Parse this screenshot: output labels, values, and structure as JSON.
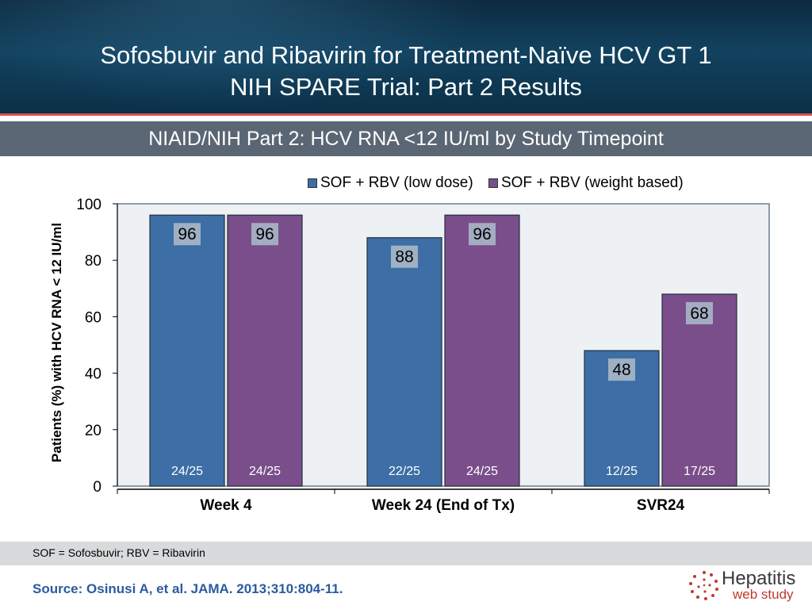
{
  "header": {
    "title_line1": "Sofosbuvir and Ribavirin for Treatment-Naïve HCV GT 1",
    "title_line2": "NIH SPARE Trial: Part 2 Results"
  },
  "subtitle": "NIAID/NIH Part 2: HCV RNA <12 IU/ml by Study Timepoint",
  "colors": {
    "series1": "#3d6ea5",
    "series2": "#7a4e8a",
    "accent_red": "#d9534f",
    "source": "#2c5aa0"
  },
  "chart_data": {
    "type": "bar",
    "categories": [
      "Week 4",
      "Week 24 (End of Tx)",
      "SVR24"
    ],
    "series": [
      {
        "name": "SOF + RBV (low dose)",
        "values": [
          96,
          88,
          48
        ],
        "fractions": [
          "24/25",
          "22/25",
          "12/25"
        ]
      },
      {
        "name": "SOF + RBV (weight based)",
        "values": [
          96,
          96,
          68
        ],
        "fractions": [
          "24/25",
          "24/25",
          "17/25"
        ]
      }
    ],
    "ylabel": "Patients (%) with HCV RNA < 12 IU/ml",
    "ylim": [
      0,
      100
    ],
    "yticks": [
      0,
      20,
      40,
      60,
      80,
      100
    ],
    "legend_position": "top-right"
  },
  "footnote": "SOF = Sofosbuvir;  RBV = Ribavirin",
  "source": "Source: Osinusi A, et al.  JAMA.  2013;310:804-11.",
  "logo": {
    "word1": "Hepatitis",
    "word2": "web study"
  }
}
